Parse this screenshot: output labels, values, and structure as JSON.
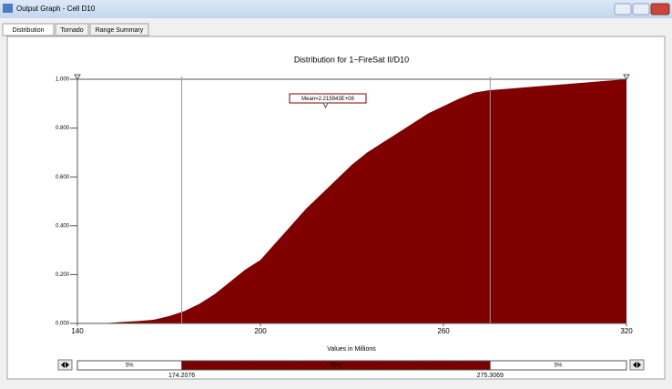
{
  "window": {
    "title": "Output Graph - Cell D10",
    "tabs": [
      "Distribution",
      "Tornado",
      "Range Summary"
    ]
  },
  "chart_data": {
    "type": "area",
    "title": "Distribution for 1~FireSat II/D10",
    "xlabel": "Values in Millions",
    "x": [
      140,
      150,
      160,
      165,
      170,
      175,
      180,
      185,
      190,
      195,
      200,
      205,
      210,
      215,
      220,
      225,
      230,
      235,
      240,
      245,
      250,
      255,
      260,
      265,
      270,
      275,
      280,
      290,
      300,
      310,
      320
    ],
    "values": [
      0,
      0.002,
      0.01,
      0.015,
      0.03,
      0.05,
      0.08,
      0.12,
      0.17,
      0.22,
      0.26,
      0.33,
      0.4,
      0.47,
      0.53,
      0.59,
      0.65,
      0.7,
      0.74,
      0.78,
      0.82,
      0.86,
      0.89,
      0.92,
      0.945,
      0.955,
      0.96,
      0.97,
      0.98,
      0.99,
      1.0
    ],
    "color": "#800000",
    "xlim": [
      140,
      320
    ],
    "xticks": [
      140,
      200,
      260,
      320
    ],
    "ylim": [
      0,
      1
    ],
    "yticks": [
      {
        "value": 0,
        "label": "0.000"
      },
      {
        "value": 0.2,
        "label": "0.200"
      },
      {
        "value": 0.4,
        "label": "0.400"
      },
      {
        "value": 0.6,
        "label": "0.600"
      },
      {
        "value": 0.8,
        "label": "0.800"
      },
      {
        "value": 1,
        "label": "1.000"
      }
    ],
    "annotation": "Mean=2.215943E+08",
    "markers": [
      174.2076,
      275.3069
    ],
    "range_bar": [
      {
        "value": 5,
        "label": "5%"
      },
      {
        "value": 90,
        "label": "90%"
      },
      {
        "value": 5,
        "label": "5%"
      }
    ]
  }
}
